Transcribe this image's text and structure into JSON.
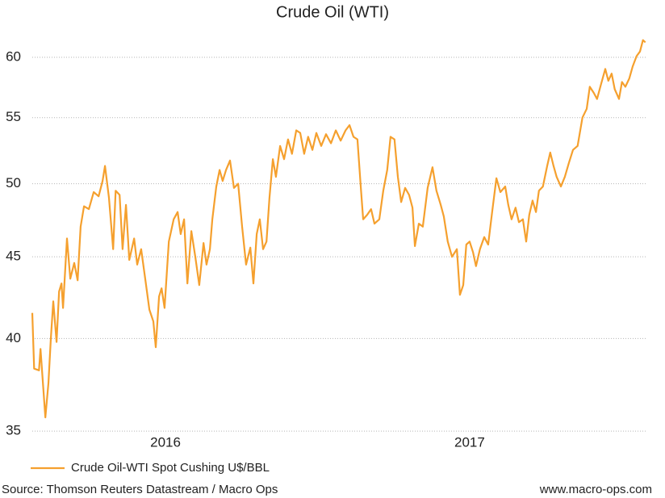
{
  "chart_data": {
    "type": "line",
    "title": "Crude Oil (WTI)",
    "source": "Source: Thomson Reuters Datastream / Macro Ops",
    "website": "www.macro-ops.com",
    "log_scale": true,
    "grid": true,
    "legend": "bottom-left",
    "xlim": [
      2015.562,
      2017.584
    ],
    "xticks": [
      {
        "value": 2016.0,
        "label": "2016"
      },
      {
        "value": 2017.0,
        "label": "2017"
      }
    ],
    "ylim": [
      34.64,
      62.2
    ],
    "yticks": [
      35,
      40,
      45,
      50,
      55,
      60
    ],
    "x": [
      2015.562,
      2015.568,
      2015.584,
      2015.589,
      2015.597,
      2015.605,
      2015.615,
      2015.623,
      2015.631,
      2015.642,
      2015.65,
      2015.658,
      2015.663,
      2015.676,
      2015.687,
      2015.7,
      2015.711,
      2015.721,
      2015.732,
      2015.748,
      2015.764,
      2015.78,
      2015.793,
      2015.801,
      2015.814,
      2015.828,
      2015.836,
      2015.849,
      2015.859,
      2015.87,
      2015.881,
      2015.897,
      2015.907,
      2015.92,
      2015.934,
      2015.947,
      2015.96,
      2015.968,
      2015.979,
      2015.987,
      2015.997,
      2016.011,
      2016.027,
      2016.04,
      2016.05,
      2016.061,
      2016.072,
      2016.085,
      2016.098,
      2016.111,
      2016.125,
      2016.135,
      2016.146,
      2016.154,
      2016.167,
      2016.178,
      2016.188,
      2016.199,
      2016.212,
      2016.225,
      2016.239,
      2016.252,
      2016.265,
      2016.279,
      2016.289,
      2016.3,
      2016.31,
      2016.321,
      2016.332,
      2016.342,
      2016.353,
      2016.363,
      2016.377,
      2016.39,
      2016.403,
      2016.416,
      2016.43,
      2016.443,
      2016.456,
      2016.469,
      2016.483,
      2016.496,
      2016.512,
      2016.528,
      2016.544,
      2016.56,
      2016.576,
      2016.592,
      2016.605,
      2016.618,
      2016.631,
      2016.642,
      2016.65,
      2016.663,
      2016.676,
      2016.687,
      2016.703,
      2016.716,
      2016.729,
      2016.74,
      2016.753,
      2016.764,
      2016.775,
      2016.788,
      2016.801,
      2016.812,
      2016.82,
      2016.833,
      2016.846,
      2016.862,
      2016.878,
      2016.891,
      2016.905,
      2016.915,
      2016.928,
      2016.942,
      2016.958,
      2016.968,
      2016.979,
      2016.989,
      2017.0,
      2017.011,
      2017.021,
      2017.034,
      2017.048,
      2017.061,
      2017.074,
      2017.088,
      2017.101,
      2017.117,
      2017.127,
      2017.138,
      2017.151,
      2017.162,
      2017.175,
      2017.186,
      2017.196,
      2017.207,
      2017.218,
      2017.228,
      2017.241,
      2017.255,
      2017.265,
      2017.276,
      2017.286,
      2017.3,
      2017.313,
      2017.326,
      2017.34,
      2017.355,
      2017.371,
      2017.385,
      2017.395,
      2017.408,
      2017.419,
      2017.432,
      2017.446,
      2017.456,
      2017.467,
      2017.477,
      2017.491,
      2017.501,
      2017.512,
      2017.525,
      2017.536,
      2017.549,
      2017.56,
      2017.57,
      2017.578
    ],
    "series": [
      {
        "name": "Crude Oil-WTI Spot Cushing U$/BBL",
        "color": "#f5a02e",
        "values": [
          41.5,
          38.3,
          38.2,
          39.4,
          37.5,
          35.7,
          37.5,
          40,
          42.2,
          39.8,
          42.8,
          43.3,
          41.8,
          46.2,
          43.6,
          44.6,
          43.5,
          47,
          48.4,
          48.2,
          49.4,
          49.1,
          50.2,
          51.3,
          49,
          45.5,
          49.5,
          49.2,
          45.5,
          48.5,
          44.8,
          46.2,
          44.5,
          45.5,
          43.5,
          41.7,
          41,
          39.5,
          42.5,
          43,
          41.8,
          46,
          47.5,
          48,
          46.5,
          47.5,
          43.3,
          46.7,
          45,
          43.2,
          45.9,
          44.5,
          45.5,
          47.5,
          49.8,
          51,
          50.2,
          51,
          51.7,
          49.7,
          50,
          47,
          44.5,
          45.6,
          43.3,
          46.5,
          47.5,
          45.5,
          46,
          49,
          51.8,
          50.5,
          52.8,
          51.8,
          53.3,
          52.2,
          54,
          53.8,
          52.2,
          53.5,
          52.5,
          53.8,
          52.8,
          53.7,
          53,
          54,
          53.2,
          54,
          54.4,
          53.5,
          53.3,
          49.8,
          47.5,
          47.8,
          48.2,
          47.2,
          47.5,
          49.5,
          51,
          53.5,
          53.3,
          50.5,
          48.7,
          49.7,
          49.2,
          48.3,
          45.7,
          47.2,
          47,
          49.7,
          51.2,
          49.5,
          48.5,
          47.7,
          46,
          45,
          45.5,
          42.6,
          43.2,
          45.8,
          46,
          45.3,
          44.4,
          45.5,
          46.3,
          45.8,
          48,
          50.4,
          49.4,
          49.8,
          48.5,
          47.5,
          48.3,
          47.3,
          47.5,
          46,
          47.8,
          48.8,
          48,
          49.5,
          49.8,
          51.3,
          52.3,
          51.3,
          50.5,
          49.8,
          50.5,
          51.5,
          52.5,
          52.8,
          55,
          55.7,
          57.5,
          57,
          56.5,
          57.7,
          59,
          58,
          58.6,
          57.3,
          56.5,
          57.9,
          57.5,
          58.2,
          59.2,
          60.1,
          60.5,
          61.5,
          61.3
        ]
      }
    ]
  }
}
